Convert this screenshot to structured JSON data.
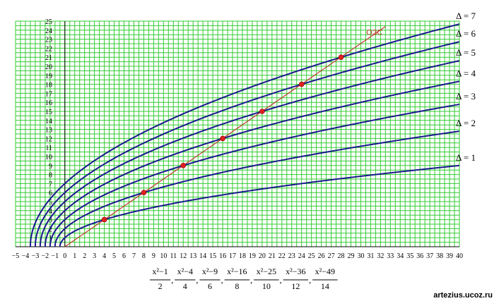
{
  "chart_data": {
    "type": "line",
    "title": "",
    "xlim": [
      -5,
      40
    ],
    "ylim": [
      0,
      25
    ],
    "grid": true,
    "x_ticks": [
      -5,
      -4,
      -3,
      -2,
      -1,
      0,
      1,
      2,
      3,
      4,
      5,
      6,
      7,
      8,
      9,
      10,
      11,
      12,
      13,
      14,
      15,
      16,
      17,
      18,
      19,
      20,
      21,
      22,
      23,
      24,
      25,
      26,
      27,
      28,
      29,
      30,
      31,
      32,
      33,
      34,
      35,
      36,
      37,
      38,
      39,
      40
    ],
    "y_ticks": [
      1,
      2,
      3,
      4,
      5,
      6,
      7,
      8,
      9,
      10,
      11,
      12,
      13,
      14,
      15,
      16,
      17,
      18,
      19,
      20,
      21,
      22,
      23,
      24,
      25
    ],
    "xlabel_numerators": [
      "x²−1",
      "x²−4",
      "x²−9",
      "x²−16",
      "x²−25",
      "x²−36",
      "x²−49"
    ],
    "xlabel_denominators": [
      "2",
      "4",
      "6",
      "8",
      "10",
      "12",
      "14"
    ],
    "series": [
      {
        "name": "Δ = 1",
        "delta": 1
      },
      {
        "name": "Δ = 2",
        "delta": 2
      },
      {
        "name": "Δ = 3",
        "delta": 3
      },
      {
        "name": "Δ = 4",
        "delta": 4
      },
      {
        "name": "Δ = 5",
        "delta": 5
      },
      {
        "name": "Δ = 6",
        "delta": 6
      },
      {
        "name": "Δ = 7",
        "delta": 7
      }
    ],
    "line": {
      "name": "ОЗС",
      "x": [
        0,
        32.5
      ],
      "y": [
        0,
        24.4
      ]
    },
    "points": [
      {
        "x": 4,
        "y": 3
      },
      {
        "x": 8,
        "y": 6
      },
      {
        "x": 12,
        "y": 9
      },
      {
        "x": 16,
        "y": 12
      },
      {
        "x": 20,
        "y": 15
      },
      {
        "x": 24,
        "y": 18
      },
      {
        "x": 28,
        "y": 21
      }
    ],
    "colors": {
      "grid": "#33cc33",
      "curves": "#1a1a8c",
      "line": "#c0392b",
      "points": "#e02020"
    }
  },
  "watermark": "artezius.ucoz.ru"
}
